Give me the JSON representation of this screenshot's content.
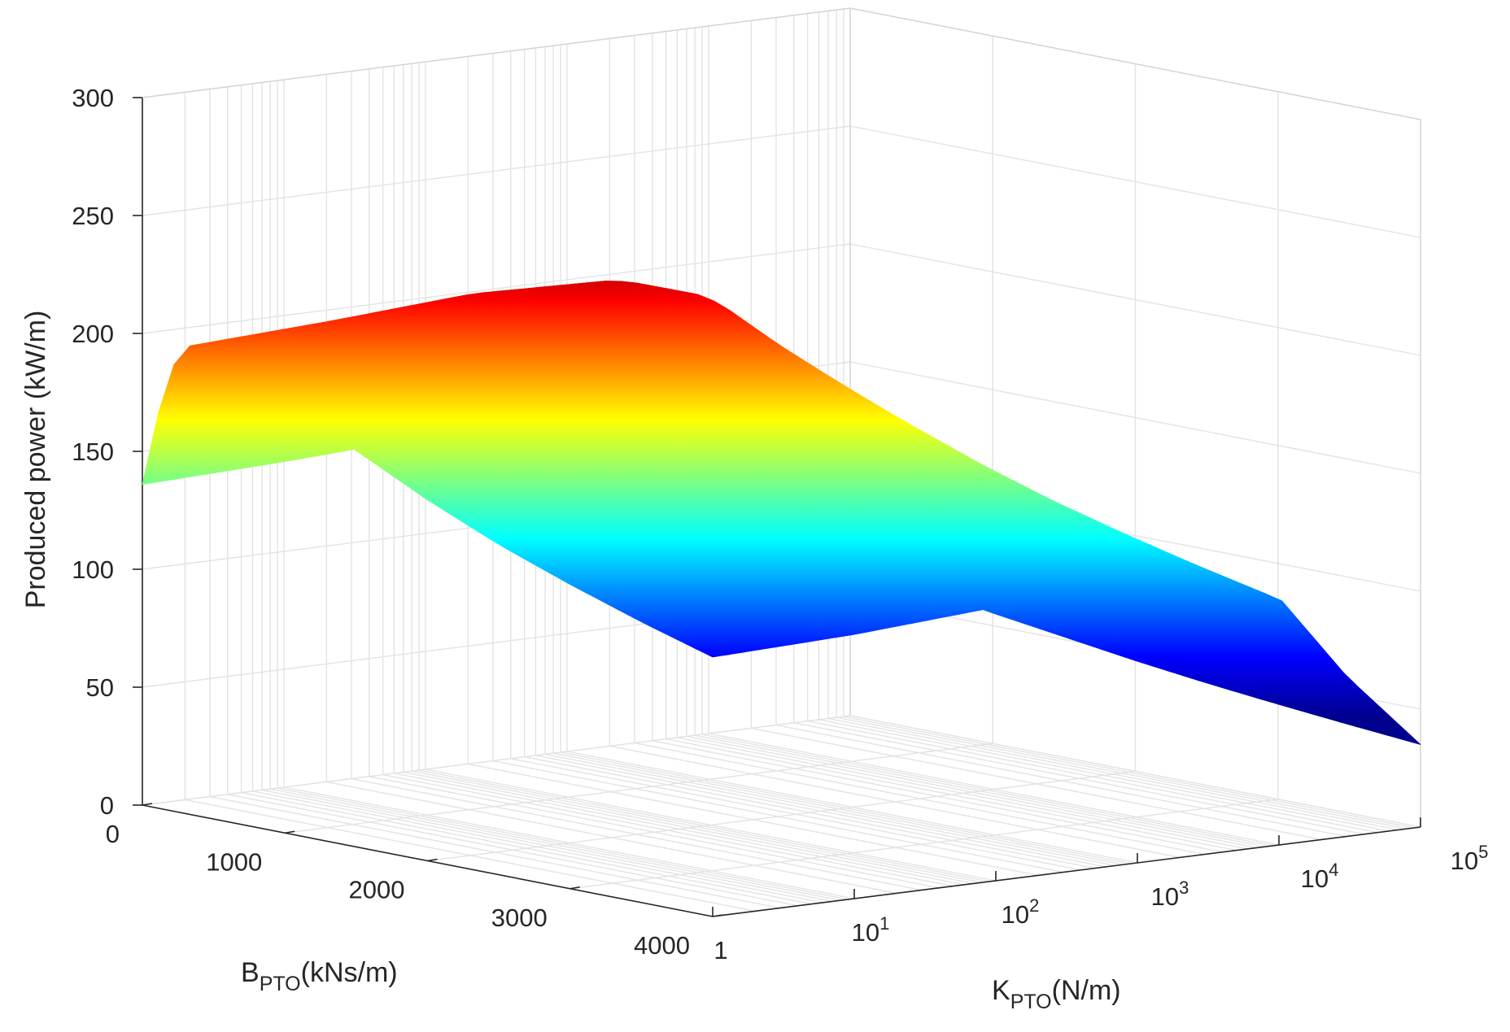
{
  "chart_data": {
    "type": "surface3d",
    "title": "",
    "zlabel": "Produced power (kW/m)",
    "xlabel": {
      "main": "B",
      "sub": "PTO",
      "unit": "(kNs/m)"
    },
    "ylabel": {
      "main": "K",
      "sub": "PTO",
      "unit": "(N/m)"
    },
    "zlim": [
      0,
      300
    ],
    "z_ticks": [
      "0",
      "50",
      "100",
      "150",
      "200",
      "250",
      "300"
    ],
    "x_axis": {
      "label": "B_PTO",
      "scale": "linear",
      "range": [
        0,
        4000
      ],
      "ticks": [
        "0",
        "1000",
        "2000",
        "3000",
        "4000"
      ]
    },
    "y_axis": {
      "label": "K_PTO",
      "scale": "log",
      "range": [
        1,
        100000
      ],
      "ticks": [
        {
          "base": "1",
          "exp": ""
        },
        {
          "base": "10",
          "exp": "1"
        },
        {
          "base": "10",
          "exp": "2"
        },
        {
          "base": "10",
          "exp": "3"
        },
        {
          "base": "10",
          "exp": "4"
        },
        {
          "base": "10",
          "exp": "5"
        }
      ]
    },
    "grid": true,
    "colormap": "jet",
    "surface_profile_along_B": {
      "B": [
        0,
        100,
        200,
        300,
        400,
        600,
        800,
        1000,
        1500,
        2000,
        2500,
        3000,
        3500,
        4000
      ],
      "power_at_K_1": [
        136,
        165,
        187,
        198,
        200,
        197,
        190,
        183,
        168,
        153,
        140,
        129,
        119,
        110
      ]
    },
    "surface_profile_along_K": {
      "K": [
        1,
        10,
        100,
        1000,
        3000,
        10000,
        30000,
        100000
      ],
      "power_at_B_0": [
        136,
        138,
        141,
        145,
        147,
        148,
        145,
        137
      ],
      "power_peak": [
        200,
        203,
        207,
        205,
        196,
        168,
        128,
        60
      ],
      "power_at_B_4000": [
        110,
        112,
        116,
        119,
        117,
        105,
        68,
        35
      ]
    },
    "approx_peak": {
      "B": 400,
      "K": 100,
      "power": 210
    }
  }
}
